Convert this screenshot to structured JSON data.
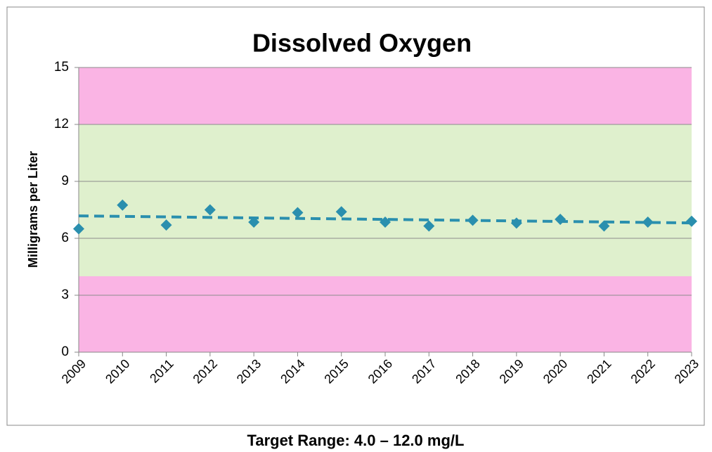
{
  "chart_data": {
    "type": "scatter",
    "title": "Dissolved Oxygen",
    "y_label": "Milligrams per Liter",
    "caption": "Target Range: 4.0 – 12.0 mg/L",
    "categories": [
      "2009",
      "2010",
      "2011",
      "2012",
      "2013",
      "2014",
      "2015",
      "2016",
      "2017",
      "2018",
      "2019",
      "2020",
      "2021",
      "2022",
      "2023"
    ],
    "values": [
      6.5,
      7.75,
      6.7,
      7.5,
      6.85,
      7.35,
      7.4,
      6.85,
      6.65,
      6.95,
      6.8,
      7.0,
      6.65,
      6.85,
      6.9
    ],
    "color": "#2a8fae",
    "trend": {
      "start": 7.18,
      "end": 6.81,
      "color": "#2a8fae"
    },
    "bands": [
      {
        "from": 0,
        "to": 4,
        "color": "#fab4e4"
      },
      {
        "from": 4,
        "to": 12,
        "color": "#dff0cd"
      },
      {
        "from": 12,
        "to": 15,
        "color": "#fab4e4"
      }
    ],
    "ylim": [
      0,
      15
    ],
    "yticks": [
      0,
      3,
      6,
      9,
      12,
      15
    ],
    "grid": true
  }
}
